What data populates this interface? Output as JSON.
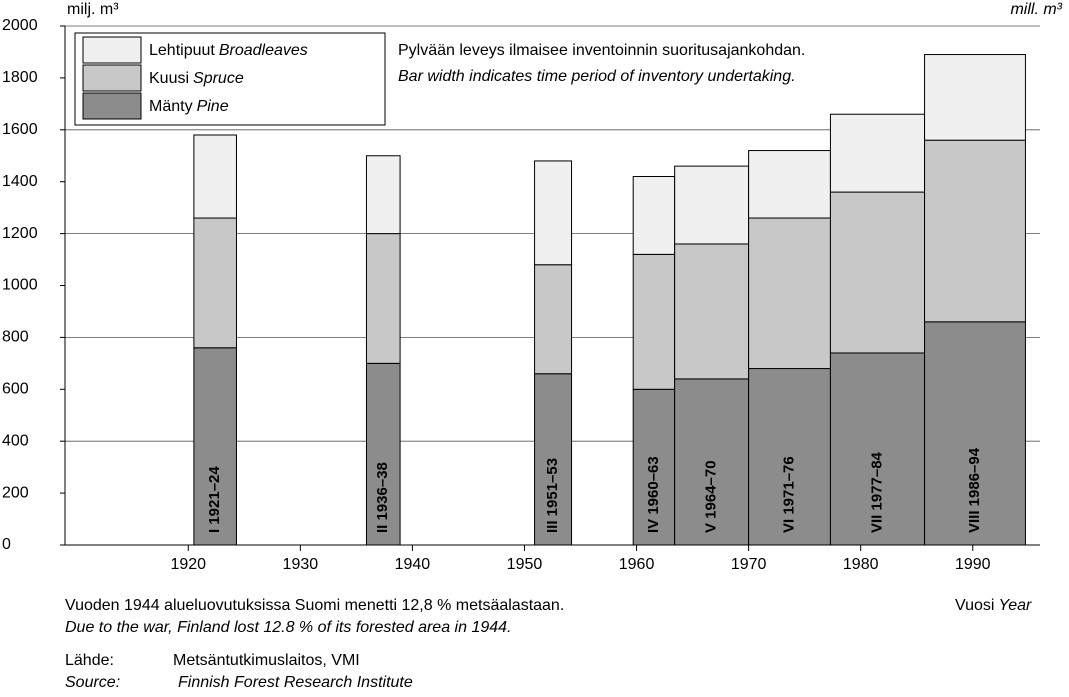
{
  "chart_data": {
    "type": "bar",
    "y_unit_left": "milj. m³",
    "y_unit_right": "mill. m³",
    "x_label": "Vuosi",
    "x_label_en": "Year",
    "annotation": "Pylvään leveys ilmaisee inventoinnin suoritusajankohdan.",
    "annotation_en": "Bar width indicates time period of inventory undertaking.",
    "bar_labels": [
      "I 1921–24",
      "II 1936–38",
      "III 1951–53",
      "IV 1960–63",
      "V 1964–70",
      "VI 1971–76",
      "VII 1977–84",
      "VIII 1986–94"
    ],
    "x_start": [
      1920.5,
      1935.9,
      1950.9,
      1959.7,
      1963.4,
      1970,
      1977.3,
      1985.7
    ],
    "x_end": [
      1924.3,
      1938.9,
      1954.2,
      1963.4,
      1970,
      1977.3,
      1985.7,
      1994.7
    ],
    "series": [
      {
        "name": "Mänty",
        "name_en": "Pine",
        "color": "#8c8c8c",
        "values": [
          760,
          700,
          660,
          600,
          640,
          680,
          740,
          860
        ]
      },
      {
        "name": "Kuusi",
        "name_en": "Spruce",
        "color": "#c8c8c8",
        "values": [
          500,
          500,
          420,
          520,
          520,
          580,
          620,
          700
        ]
      },
      {
        "name": "Lehtipuut",
        "name_en": "Broadleaves",
        "color": "#f0f0f0",
        "values": [
          320,
          300,
          400,
          300,
          300,
          260,
          300,
          330
        ]
      }
    ],
    "xlim": [
      1909,
      1996
    ],
    "xticks": [
      1920,
      1930,
      1940,
      1950,
      1960,
      1970,
      1980,
      1990
    ],
    "ylim": [
      0,
      2000
    ],
    "yticks": [
      0,
      200,
      400,
      600,
      800,
      1000,
      1200,
      1400,
      1600,
      1800,
      2000
    ],
    "grid": true,
    "notes": [
      {
        "text": "Vuoden 1944 alueluovutuksissa Suomi menetti 12,8 % metsäalastaan.",
        "italic": false
      },
      {
        "text": "Due to the war, Finland lost 12.8 % of its forested area in 1944.",
        "italic": true
      }
    ],
    "source": {
      "label": "Lähde:",
      "text": "Metsäntutkimuslaitos, VMI",
      "label_en": "Source:",
      "text_en": "Finnish Forest Research Institute"
    }
  }
}
